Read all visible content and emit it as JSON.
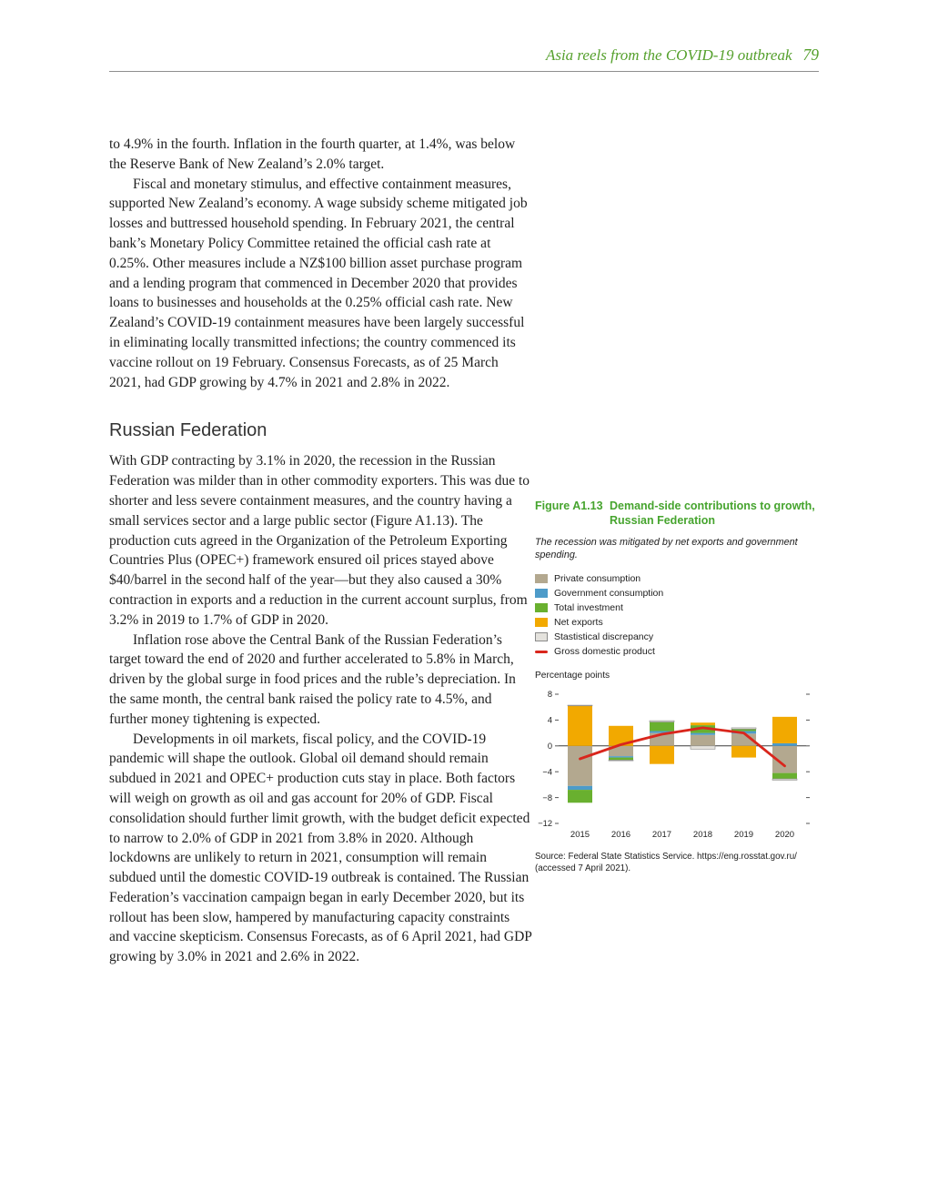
{
  "header": {
    "running_title": "Asia reels from the COVID-19 outbreak",
    "page_number": "79"
  },
  "body": {
    "paragraph_nz_1": "to 4.9% in the fourth. Inflation in the fourth quarter, at 1.4%, was below the Reserve Bank of New Zealand’s 2.0% target.",
    "paragraph_nz_2": "Fiscal and monetary stimulus, and effective containment measures, supported New Zealand’s economy. A wage subsidy scheme mitigated job losses and buttressed household spending. In February 2021, the central bank’s Monetary Policy Committee retained the official cash rate at 0.25%. Other measures include a NZ$100 billion asset purchase program and a lending program that commenced in December 2020 that provides loans to businesses and households at the 0.25% official cash rate. New Zealand’s COVID-19 containment measures have been largely successful in eliminating locally transmitted infections; the country commenced its vaccine rollout on 19 February. Consensus Forecasts, as of 25 March 2021, had GDP growing by 4.7% in 2021 and 2.8% in 2022.",
    "section_heading": "Russian Federation",
    "paragraph_ru_1": "With GDP contracting by 3.1% in 2020, the recession in the Russian Federation was milder than in other commodity exporters. This was due to shorter and less severe containment measures, and the country having a small services sector and a large public sector (Figure A1.13). The production cuts agreed in the Organization of the Petroleum Exporting Countries Plus (OPEC+) framework ensured oil prices stayed above $40/barrel in the second half of the year—but they also caused a 30% contraction in exports and a reduction in the current account surplus, from 3.2% in 2019 to 1.7% of GDP in 2020.",
    "paragraph_ru_2": "Inflation rose above the Central Bank of the Russian Federation’s target toward the end of 2020 and further accelerated to 5.8% in March, driven by the global surge in food prices and the ruble’s depreciation. In the same month, the central bank raised the policy rate to 4.5%, and further money tightening is expected.",
    "paragraph_ru_3": "Developments in oil markets, fiscal policy, and the COVID-19 pandemic will shape the outlook. Global oil demand should remain subdued in 2021 and OPEC+ production cuts stay in place. Both factors will weigh on growth as oil and gas account for 20% of GDP. Fiscal consolidation should further limit growth, with the budget deficit expected to narrow to 2.0% of GDP in 2021 from 3.8% in 2020. Although lockdowns are unlikely to return in 2021, consumption will remain subdued until the domestic COVID-19 outbreak is contained. The Russian Federation’s vaccination campaign began in early December 2020, but its rollout has been slow, hampered by manufacturing capacity constraints and vaccine skepticism. Consensus Forecasts, as of 6 April 2021, had GDP growing by 3.0% in 2021 and 2.6% in 2022."
  },
  "figure": {
    "label": "Figure A1.13",
    "title": "Demand-side contributions to growth, Russian Federation",
    "subtitle": "The recession was mitigated by net exports and government spending.",
    "axis_label": "Percentage points",
    "source": "Source: Federal State Statistics Service. https://eng.rosstat.gov.ru/ (accessed 7 April 2021)."
  },
  "chart_data": {
    "type": "bar",
    "stacked": true,
    "title": "Demand-side contributions to growth, Russian Federation",
    "ylabel": "Percentage points",
    "ylim": [
      -12,
      8
    ],
    "yticks": [
      8,
      4,
      0,
      -4,
      -8,
      -12
    ],
    "grid": false,
    "legend_position": "above-left",
    "categories": [
      "2015",
      "2016",
      "2017",
      "2018",
      "2019",
      "2020"
    ],
    "series": [
      {
        "name": "Private consumption",
        "color": "#b3a88f",
        "values": [
          -6.2,
          -1.6,
          2.0,
          1.7,
          1.9,
          -4.2
        ]
      },
      {
        "name": "Government consumption",
        "color": "#4d9bc9",
        "values": [
          -0.6,
          -0.2,
          0.3,
          0.3,
          0.4,
          0.4
        ]
      },
      {
        "name": "Total investment",
        "color": "#69b02f",
        "values": [
          -2.0,
          -0.4,
          1.4,
          1.2,
          0.3,
          -0.9
        ]
      },
      {
        "name": "Net exports",
        "color": "#f2a900",
        "values": [
          6.2,
          3.1,
          -2.8,
          0.4,
          -1.8,
          4.1
        ]
      },
      {
        "name": "Stastistical discrepancy",
        "color": "#e4e2dd",
        "stroke": "#8a8a8a",
        "values": [
          0.1,
          -0.1,
          0.2,
          -0.5,
          0.2,
          -0.2
        ]
      }
    ],
    "line_series": {
      "name": "Gross domestic product",
      "color": "#d9261c",
      "values": [
        -2.0,
        0.2,
        1.8,
        2.8,
        2.0,
        -3.1
      ]
    }
  }
}
